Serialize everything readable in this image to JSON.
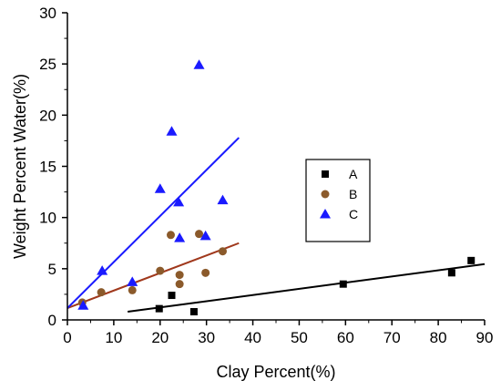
{
  "chart_data": {
    "type": "scatter",
    "xlabel": "Clay Percent(%)",
    "ylabel": "Weight Percent Water(%)",
    "xlim": [
      0,
      90
    ],
    "ylim": [
      0,
      30
    ],
    "x_ticks": [
      0,
      10,
      20,
      30,
      40,
      50,
      60,
      70,
      80,
      90
    ],
    "y_ticks": [
      0,
      5,
      10,
      15,
      20,
      25,
      30
    ],
    "grid": false,
    "legend_placement": "center-right",
    "series": [
      {
        "name": "A",
        "marker": "square",
        "color": "#000000",
        "points": [
          {
            "x": 19.8,
            "y": 1.1
          },
          {
            "x": 22.5,
            "y": 2.4
          },
          {
            "x": 27.3,
            "y": 0.8
          },
          {
            "x": 59.5,
            "y": 3.5
          },
          {
            "x": 82.9,
            "y": 4.6
          },
          {
            "x": 87.1,
            "y": 5.8
          }
        ],
        "fit": {
          "x": [
            13,
            90
          ],
          "y": [
            0.8,
            5.45
          ],
          "color": "#000000"
        }
      },
      {
        "name": "B",
        "marker": "circle",
        "color": "#e8201f",
        "fill_color": "#8b5a2b",
        "points": [
          {
            "x": 3.2,
            "y": 1.7
          },
          {
            "x": 7.3,
            "y": 2.7
          },
          {
            "x": 14.0,
            "y": 2.9
          },
          {
            "x": 20.0,
            "y": 4.8
          },
          {
            "x": 22.3,
            "y": 8.3
          },
          {
            "x": 24.2,
            "y": 4.4
          },
          {
            "x": 24.2,
            "y": 3.5
          },
          {
            "x": 28.4,
            "y": 8.4
          },
          {
            "x": 29.8,
            "y": 4.6
          },
          {
            "x": 33.5,
            "y": 6.7
          }
        ],
        "fit": {
          "x": [
            0,
            37
          ],
          "y": [
            1.15,
            7.5
          ],
          "color": "#a0381c"
        }
      },
      {
        "name": "C",
        "marker": "triangle",
        "color": "#1a1aff",
        "points": [
          {
            "x": 3.4,
            "y": 1.4
          },
          {
            "x": 7.5,
            "y": 4.8
          },
          {
            "x": 14.0,
            "y": 3.7
          },
          {
            "x": 20.0,
            "y": 12.8
          },
          {
            "x": 22.5,
            "y": 18.4
          },
          {
            "x": 24.0,
            "y": 11.5
          },
          {
            "x": 24.2,
            "y": 8.0
          },
          {
            "x": 28.4,
            "y": 24.9
          },
          {
            "x": 29.8,
            "y": 8.2
          },
          {
            "x": 33.5,
            "y": 11.7
          }
        ],
        "fit": {
          "x": [
            0,
            37
          ],
          "y": [
            1.15,
            17.8
          ],
          "color": "#1a1aff"
        }
      }
    ]
  }
}
